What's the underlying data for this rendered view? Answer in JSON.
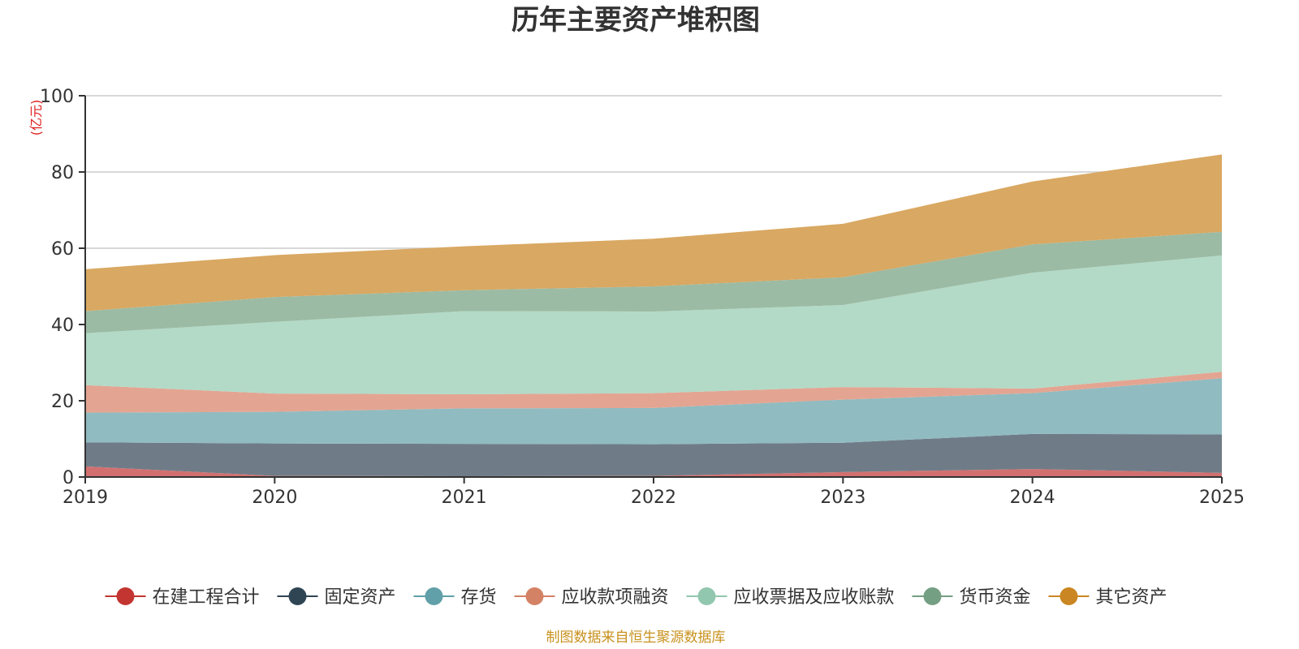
{
  "chart_data": {
    "type": "area",
    "stacked": true,
    "title": "历年主要资产堆积图",
    "unit_label": "(亿元)",
    "x": [
      "2019",
      "2020",
      "2021",
      "2022",
      "2023",
      "2024",
      "2025"
    ],
    "ylim": [
      0,
      100
    ],
    "yticks": [
      0,
      20,
      40,
      60,
      80,
      100
    ],
    "ytick_labels": [
      "0",
      "20",
      "40",
      "60",
      "80",
      "100"
    ],
    "grid": true,
    "legend_position": "bottom",
    "series": [
      {
        "name": "在建工程合计",
        "color": "#c23531",
        "area_color": "#d27070",
        "values": [
          2.8,
          0.3,
          0.2,
          0.3,
          1.3,
          2.1,
          1.1
        ]
      },
      {
        "name": "固定资产",
        "color": "#2f4554",
        "area_color": "#6f7c87",
        "values": [
          6.3,
          8.5,
          8.5,
          8.3,
          7.7,
          9.2,
          10.1
        ]
      },
      {
        "name": "存货",
        "color": "#61a0a8",
        "area_color": "#90bbc1",
        "values": [
          7.8,
          8.3,
          9.3,
          9.5,
          11.3,
          10.7,
          14.7
        ]
      },
      {
        "name": "应收款项融资",
        "color": "#d48265",
        "area_color": "#e3a592",
        "values": [
          7.2,
          4.8,
          3.7,
          3.9,
          3.3,
          1.2,
          1.7
        ]
      },
      {
        "name": "应收票据及应收账款",
        "color": "#91c7ae",
        "area_color": "#b2dac7",
        "values": [
          13.6,
          18.8,
          21.8,
          21.4,
          21.5,
          30.4,
          30.5
        ]
      },
      {
        "name": "货币资金",
        "color": "#749f83",
        "area_color": "#9cbba4",
        "values": [
          5.8,
          6.5,
          5.5,
          6.6,
          7.3,
          7.4,
          6.2
        ]
      },
      {
        "name": "其它资产",
        "color": "#ca8622",
        "area_color": "#d9a862",
        "values": [
          11.0,
          11.0,
          11.5,
          12.5,
          14.0,
          16.5,
          20.3
        ]
      }
    ],
    "source": "制图数据来自恒生聚源数据库"
  }
}
